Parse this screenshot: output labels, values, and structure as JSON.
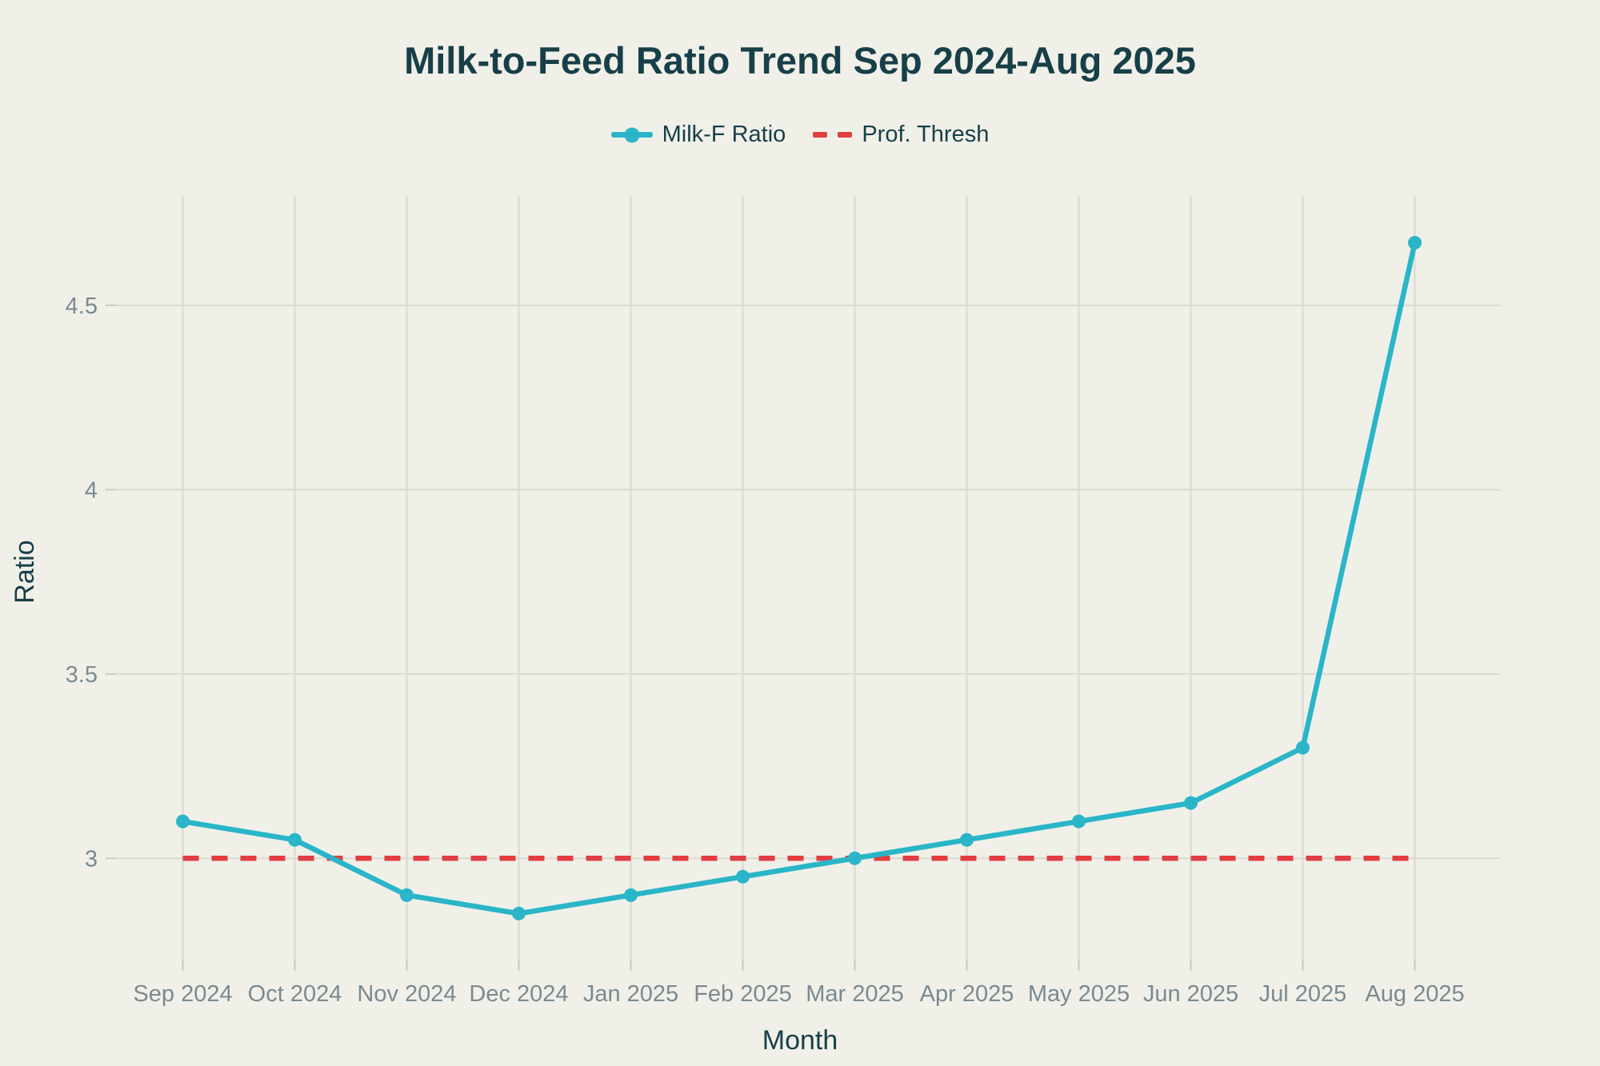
{
  "page": {
    "title": "Milk-to-Feed Ratio Trend Sep 2024-Aug 2025"
  },
  "colors": {
    "background": "#f0f0e9",
    "title_text": "#173f48",
    "tick_text": "#7b8a90",
    "gridline": "#d8d9d1",
    "series_line": "#2ab5c8",
    "threshold_line": "#e23e41"
  },
  "chart_data": {
    "type": "line",
    "title": "Milk-to-Feed Ratio Trend Sep 2024-Aug 2025",
    "xlabel": "Month",
    "ylabel": "Ratio",
    "categories": [
      "Sep 2024",
      "Oct 2024",
      "Nov 2024",
      "Dec 2024",
      "Jan 2025",
      "Feb 2025",
      "Mar 2025",
      "Apr 2025",
      "May 2025",
      "Jun 2025",
      "Jul 2025",
      "Aug 2025"
    ],
    "series": [
      {
        "name": "Milk-F Ratio",
        "type": "line-with-markers",
        "color": "#2ab5c8",
        "values": [
          3.1,
          3.05,
          2.9,
          2.85,
          2.9,
          2.95,
          3.0,
          3.05,
          3.1,
          3.15,
          3.3,
          4.67
        ]
      },
      {
        "name": "Prof. Thresh",
        "type": "dashed-threshold",
        "color": "#e23e41",
        "value": 3.0
      }
    ],
    "yticks": [
      3,
      3.5,
      4,
      4.5
    ],
    "ylim": [
      2.725,
      4.797
    ],
    "grid": true,
    "legend_position": "top-center"
  }
}
